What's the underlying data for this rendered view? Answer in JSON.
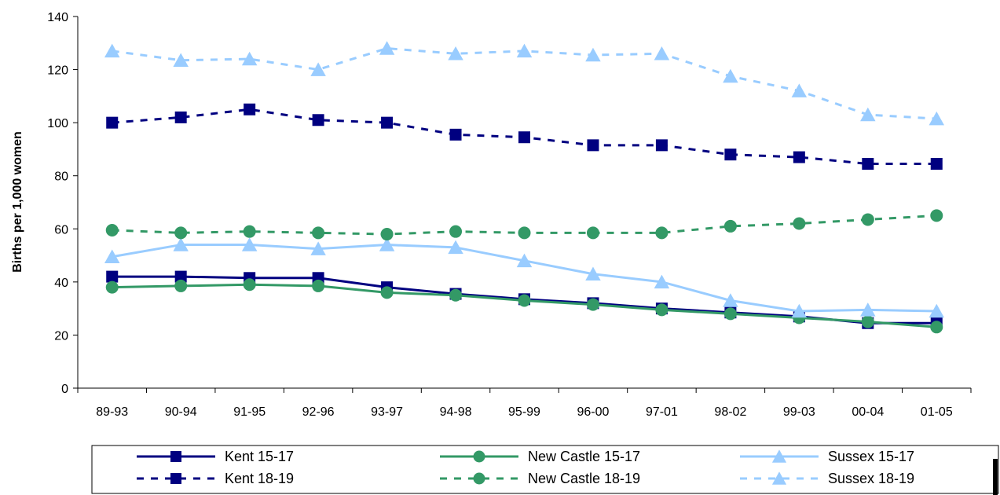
{
  "chart_data": {
    "type": "line",
    "title": "",
    "xlabel": "",
    "ylabel": "Births per 1,000 women",
    "ylim": [
      0,
      140
    ],
    "yticks": [
      0,
      20,
      40,
      60,
      80,
      100,
      120,
      140
    ],
    "categories": [
      "89-93",
      "90-94",
      "91-95",
      "92-96",
      "93-97",
      "94-98",
      "95-99",
      "96-00",
      "97-01",
      "98-02",
      "99-03",
      "00-04",
      "01-05"
    ],
    "grid": false,
    "legend_position": "bottom",
    "series": [
      {
        "name": "Kent 15-17",
        "color": "#000080",
        "marker": "square",
        "dash": "solid",
        "values": [
          42,
          42,
          41.5,
          41.5,
          38,
          35.5,
          33.5,
          32,
          30,
          28.5,
          27,
          24.5,
          24.5
        ]
      },
      {
        "name": "New Castle 15-17",
        "color": "#339966",
        "marker": "circle",
        "dash": "solid",
        "values": [
          38,
          38.5,
          39,
          38.5,
          36,
          35,
          33,
          31.5,
          29.5,
          28,
          26.5,
          25,
          23
        ]
      },
      {
        "name": "Sussex 15-17",
        "color": "#99ccff",
        "marker": "triangle",
        "dash": "solid",
        "values": [
          49.5,
          54,
          54,
          52.5,
          54,
          53,
          48,
          43,
          40,
          33,
          29,
          29.5,
          29
        ]
      },
      {
        "name": "Kent 18-19",
        "color": "#000080",
        "marker": "square",
        "dash": "dashed",
        "values": [
          100,
          102,
          105,
          101,
          100,
          95.5,
          94.5,
          91.5,
          91.5,
          88,
          87,
          84.5,
          84.5
        ]
      },
      {
        "name": "New Castle 18-19",
        "color": "#339966",
        "marker": "circle",
        "dash": "dashed",
        "values": [
          59.5,
          58.5,
          59,
          58.5,
          58,
          59,
          58.5,
          58.5,
          58.5,
          61,
          62,
          63.5,
          65
        ]
      },
      {
        "name": "Sussex 18-19",
        "color": "#99ccff",
        "marker": "triangle",
        "dash": "dashed",
        "values": [
          127,
          123.5,
          124,
          120,
          128,
          126,
          127,
          125.5,
          126,
          117.5,
          112,
          103,
          101.5
        ]
      }
    ]
  }
}
